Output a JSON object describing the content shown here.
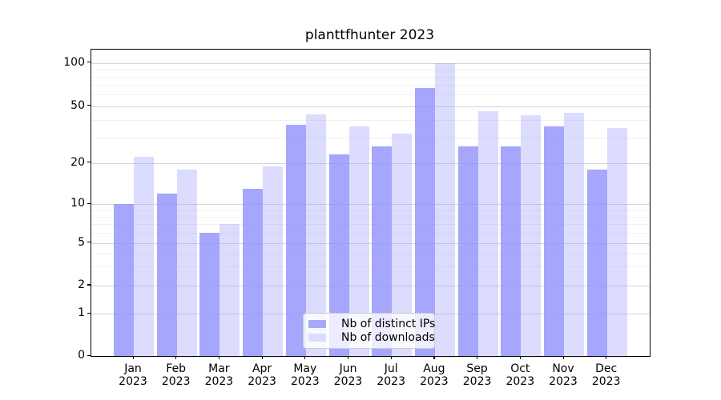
{
  "chart_data": {
    "type": "bar",
    "title": "planttfhunter 2023",
    "categories": [
      "Jan",
      "Feb",
      "Mar",
      "Apr",
      "May",
      "Jun",
      "Jul",
      "Aug",
      "Sep",
      "Oct",
      "Nov",
      "Dec"
    ],
    "category_year": "2023",
    "series": [
      {
        "name": "Nb of distinct IPs",
        "values": [
          10,
          12,
          6,
          13,
          37,
          23,
          26,
          67,
          26,
          26,
          36,
          18
        ],
        "fill": "rgba(147,147,252,0.82)",
        "legend_swatch": "#a9a9fb"
      },
      {
        "name": "Nb of downloads",
        "values": [
          22,
          18,
          7,
          19,
          44,
          36,
          32,
          100,
          46,
          43,
          45,
          35
        ],
        "fill": "rgba(147,147,252,0.32)",
        "legend_swatch": "#dcdcfd"
      }
    ],
    "xlabel": "",
    "ylabel": "",
    "yscale": "symlog",
    "ylim": [
      0,
      113
    ],
    "y_major_ticks": [
      0,
      1,
      2,
      5,
      10,
      20,
      50,
      100
    ],
    "y_minor_gridlines": [
      3,
      4,
      6,
      7,
      8,
      9,
      30,
      40,
      60,
      70,
      80,
      90
    ],
    "y_scale_anchors": [
      [
        0,
        0
      ],
      [
        1,
        0.1371
      ],
      [
        2,
        0.2298
      ],
      [
        5,
        0.369
      ],
      [
        10,
        0.4953
      ],
      [
        20,
        0.63
      ],
      [
        50,
        0.8154
      ],
      [
        100,
        0.9569
      ]
    ],
    "grid": "y-major-and-minor",
    "legend_position": "lower-center-inside",
    "colors": {
      "major_grid": "#d7d7d7",
      "minor_grid": "#f1f1f1",
      "axis": "#000000",
      "legend_border": "#cccccc"
    }
  }
}
